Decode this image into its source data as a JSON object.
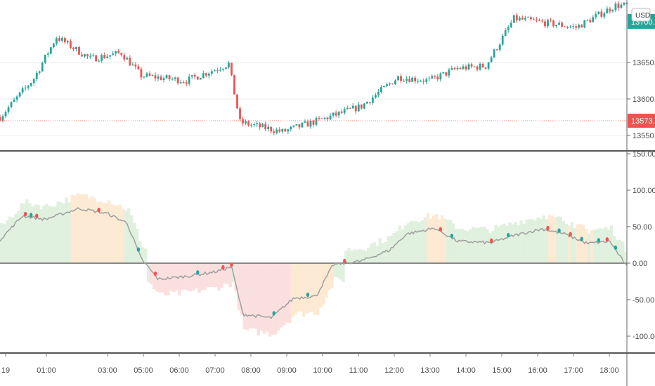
{
  "currency": "USD",
  "colors": {
    "up": "#26a69a",
    "down": "#ef5350",
    "grid": "#eeeeee",
    "separator": "#555555",
    "axis_text": "#4a4a4a",
    "price_line": "#ef5350",
    "osc_line": "#9e9e9e",
    "zero_line": "#888888",
    "fill_green": "#dcefd9",
    "fill_orange": "#fde6cc",
    "fill_red": "#fadada"
  },
  "price_panel": {
    "y_ticks": [
      "13650.00",
      "13600.00",
      "13550.00"
    ],
    "current_price": "13573.00",
    "last_price_tag": "13700.00"
  },
  "oscillator_panel": {
    "y_ticks": [
      "150.00",
      "100.00",
      "50.00",
      "0.00",
      "-50.00",
      "-100.00"
    ]
  },
  "time_axis": {
    "labels": [
      "19",
      "01:00",
      "03:00",
      "05:00",
      "06:00",
      "07:00",
      "08:00",
      "09:00",
      "10:00",
      "11:00",
      "12:00",
      "13:00",
      "14:00",
      "15:00",
      "16:00",
      "17:00",
      "18:00"
    ]
  },
  "chart_data": [
    {
      "type": "candlestick",
      "title": "",
      "xlabel": "",
      "ylabel": "",
      "ylim": [
        13535,
        13745
      ],
      "x": [
        "00:00",
        "18:30"
      ],
      "approx_close_path": [
        {
          "t": "00:00",
          "v": 13575
        },
        {
          "t": "01:00",
          "v": 13628
        },
        {
          "t": "01:40",
          "v": 13685
        },
        {
          "t": "02:40",
          "v": 13655
        },
        {
          "t": "03:35",
          "v": 13663
        },
        {
          "t": "04:10",
          "v": 13632
        },
        {
          "t": "05:30",
          "v": 13625
        },
        {
          "t": "06:45",
          "v": 13648
        },
        {
          "t": "07:05",
          "v": 13568
        },
        {
          "t": "08:20",
          "v": 13555
        },
        {
          "t": "09:30",
          "v": 13572
        },
        {
          "t": "10:40",
          "v": 13590
        },
        {
          "t": "11:45",
          "v": 13630
        },
        {
          "t": "12:40",
          "v": 13625
        },
        {
          "t": "13:30",
          "v": 13642
        },
        {
          "t": "14:20",
          "v": 13645
        },
        {
          "t": "15:10",
          "v": 13710
        },
        {
          "t": "16:00",
          "v": 13705
        },
        {
          "t": "17:00",
          "v": 13698
        },
        {
          "t": "18:10",
          "v": 13728
        }
      ],
      "current_price": 13573
    },
    {
      "type": "line",
      "title": "",
      "xlabel": "",
      "ylabel": "",
      "ylim": [
        -125,
        155
      ],
      "zero_line": 0,
      "series": [
        {
          "values": [
            {
              "t": "00:00",
              "v": 32
            },
            {
              "t": "00:40",
              "v": 65
            },
            {
              "t": "01:20",
              "v": 60
            },
            {
              "t": "02:20",
              "v": 75
            },
            {
              "t": "03:10",
              "v": 68
            },
            {
              "t": "03:45",
              "v": 55
            },
            {
              "t": "04:10",
              "v": 6
            },
            {
              "t": "04:40",
              "v": -22
            },
            {
              "t": "05:30",
              "v": -18
            },
            {
              "t": "06:20",
              "v": -12
            },
            {
              "t": "06:50",
              "v": -5
            },
            {
              "t": "07:10",
              "v": -70
            },
            {
              "t": "08:00",
              "v": -75
            },
            {
              "t": "08:40",
              "v": -48
            },
            {
              "t": "09:20",
              "v": -45
            },
            {
              "t": "09:50",
              "v": -2
            },
            {
              "t": "10:40",
              "v": 3
            },
            {
              "t": "11:30",
              "v": 18
            },
            {
              "t": "12:00",
              "v": 40
            },
            {
              "t": "12:50",
              "v": 48
            },
            {
              "t": "13:30",
              "v": 30
            },
            {
              "t": "14:30",
              "v": 28
            },
            {
              "t": "15:10",
              "v": 38
            },
            {
              "t": "16:00",
              "v": 47
            },
            {
              "t": "16:40",
              "v": 40
            },
            {
              "t": "17:20",
              "v": 27
            },
            {
              "t": "18:00",
              "v": 30
            },
            {
              "t": "18:30",
              "v": -5
            }
          ]
        }
      ]
    }
  ]
}
